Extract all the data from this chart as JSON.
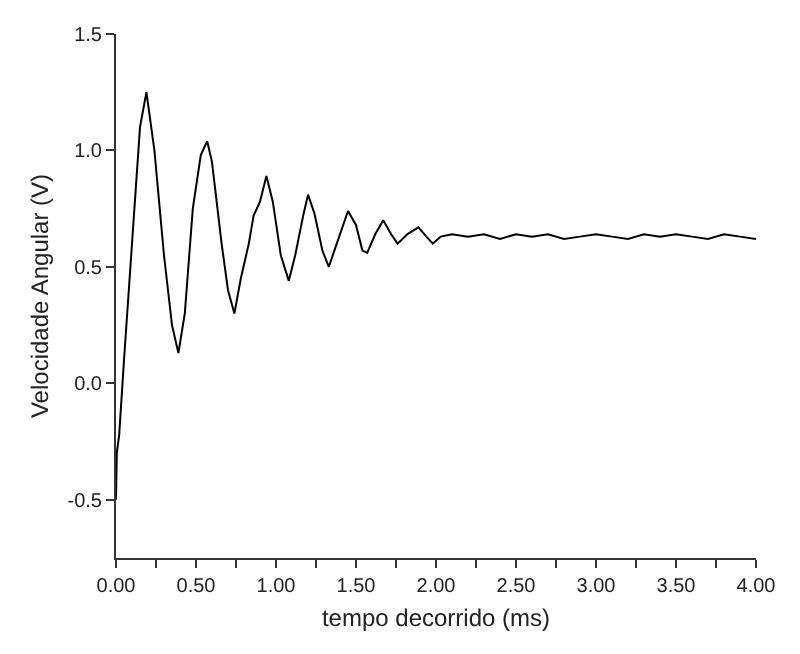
{
  "chart_data": {
    "type": "line",
    "xlabel": "tempo decorrido (ms)",
    "ylabel": "Velocidade Angular (V)",
    "x": [
      0,
      0.005,
      0.02,
      0.05,
      0.1,
      0.15,
      0.19,
      0.24,
      0.3,
      0.35,
      0.39,
      0.43,
      0.48,
      0.53,
      0.57,
      0.6,
      0.66,
      0.7,
      0.74,
      0.78,
      0.83,
      0.86,
      0.9,
      0.94,
      0.98,
      1.03,
      1.08,
      1.12,
      1.17,
      1.2,
      1.24,
      1.29,
      1.33,
      1.38,
      1.45,
      1.5,
      1.54,
      1.57,
      1.62,
      1.67,
      1.72,
      1.76,
      1.82,
      1.89,
      1.94,
      1.98,
      2.03,
      2.1,
      2.2,
      2.3,
      2.4,
      2.5,
      2.6,
      2.7,
      2.8,
      2.9,
      3.0,
      3.1,
      3.2,
      3.3,
      3.4,
      3.5,
      3.6,
      3.7,
      3.8,
      3.9,
      4.0
    ],
    "series": [
      {
        "color": "#000000",
        "values": [
          -0.5,
          -0.3,
          -0.22,
          0.1,
          0.6,
          1.1,
          1.25,
          1.0,
          0.55,
          0.25,
          0.13,
          0.3,
          0.75,
          0.98,
          1.04,
          0.95,
          0.6,
          0.4,
          0.3,
          0.45,
          0.6,
          0.72,
          0.78,
          0.89,
          0.78,
          0.55,
          0.44,
          0.55,
          0.72,
          0.81,
          0.73,
          0.57,
          0.5,
          0.6,
          0.74,
          0.68,
          0.57,
          0.56,
          0.64,
          0.7,
          0.64,
          0.6,
          0.64,
          0.67,
          0.63,
          0.6,
          0.63,
          0.64,
          0.63,
          0.64,
          0.62,
          0.64,
          0.63,
          0.64,
          0.62,
          0.63,
          0.64,
          0.63,
          0.62,
          0.64,
          0.63,
          0.64,
          0.63,
          0.62,
          0.64,
          0.63,
          0.62
        ]
      }
    ],
    "xlim": [
      0,
      4
    ],
    "xticks": [
      {
        "value": 0,
        "label": "0.00"
      },
      {
        "value": 0.25,
        "label": null
      },
      {
        "value": 0.5,
        "label": "0.50"
      },
      {
        "value": 0.75,
        "label": null
      },
      {
        "value": 1,
        "label": "1.00"
      },
      {
        "value": 1.25,
        "label": null
      },
      {
        "value": 1.5,
        "label": "1.50"
      },
      {
        "value": 1.75,
        "label": null
      },
      {
        "value": 2,
        "label": "2.00"
      },
      {
        "value": 2.25,
        "label": null
      },
      {
        "value": 2.5,
        "label": "2.50"
      },
      {
        "value": 2.75,
        "label": null
      },
      {
        "value": 3,
        "label": "3.00"
      },
      {
        "value": 3.25,
        "label": null
      },
      {
        "value": 3.5,
        "label": "3.50"
      },
      {
        "value": 3.75,
        "label": null
      },
      {
        "value": 4,
        "label": "4.00"
      }
    ],
    "ylim": [
      -0.75,
      1.5
    ],
    "yticks": [
      {
        "value": -0.5,
        "label": "-0.5"
      },
      {
        "value": 0,
        "label": "0.0"
      },
      {
        "value": 0.5,
        "label": "0.5"
      },
      {
        "value": 1,
        "label": "1.0"
      },
      {
        "value": 1.5,
        "label": "1.5"
      }
    ],
    "marker": "none",
    "line_style": "solid"
  }
}
